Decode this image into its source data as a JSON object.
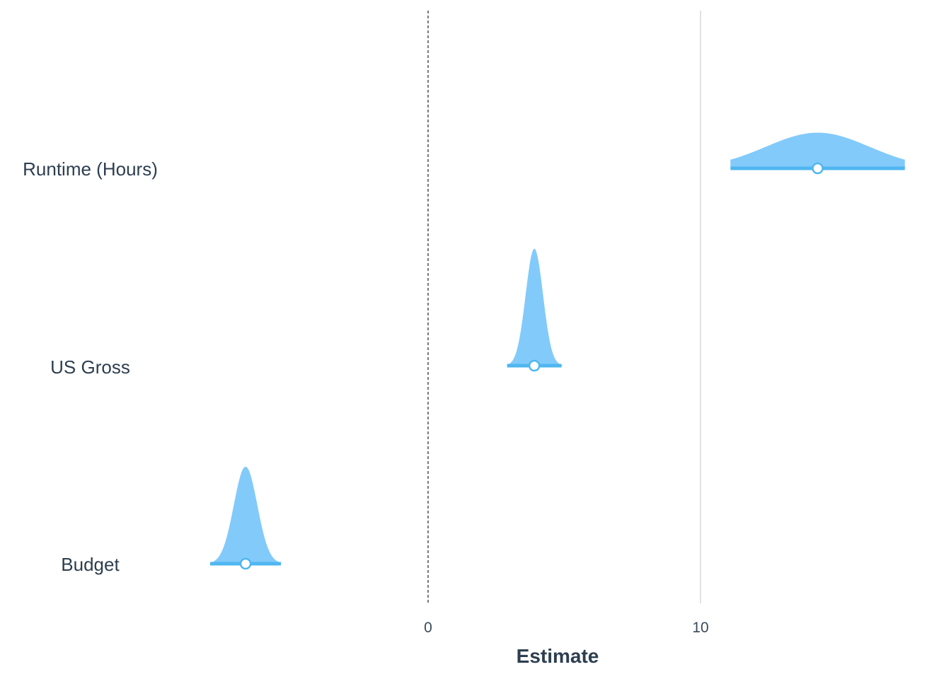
{
  "chart_data": {
    "type": "violin",
    "xlabel": "Estimate",
    "categories": [
      "Runtime (Hours)",
      "US Gross",
      "Budget"
    ],
    "x_ticks": [
      0,
      10
    ],
    "xlim": [
      -15.7,
      17.7
    ],
    "zero_line": 0,
    "grid": "vertical-major",
    "colors": {
      "fill": "#82cafa",
      "line": "#4fb6f0",
      "point_fill": "#ffffff",
      "point_stroke": "#4fb6f0"
    },
    "series": [
      {
        "term": "Runtime (Hours)",
        "estimate": 14.3,
        "ci": [
          11.1,
          17.5
        ],
        "sd": 1.9,
        "height": 0.18
      },
      {
        "term": "US Gross",
        "estimate": 3.9,
        "ci": [
          2.9,
          4.9
        ],
        "sd": 0.32,
        "height": 0.59
      },
      {
        "term": "Budget",
        "estimate": -6.7,
        "ci": [
          -8.0,
          -5.4
        ],
        "sd": 0.43,
        "height": 0.49
      }
    ]
  }
}
